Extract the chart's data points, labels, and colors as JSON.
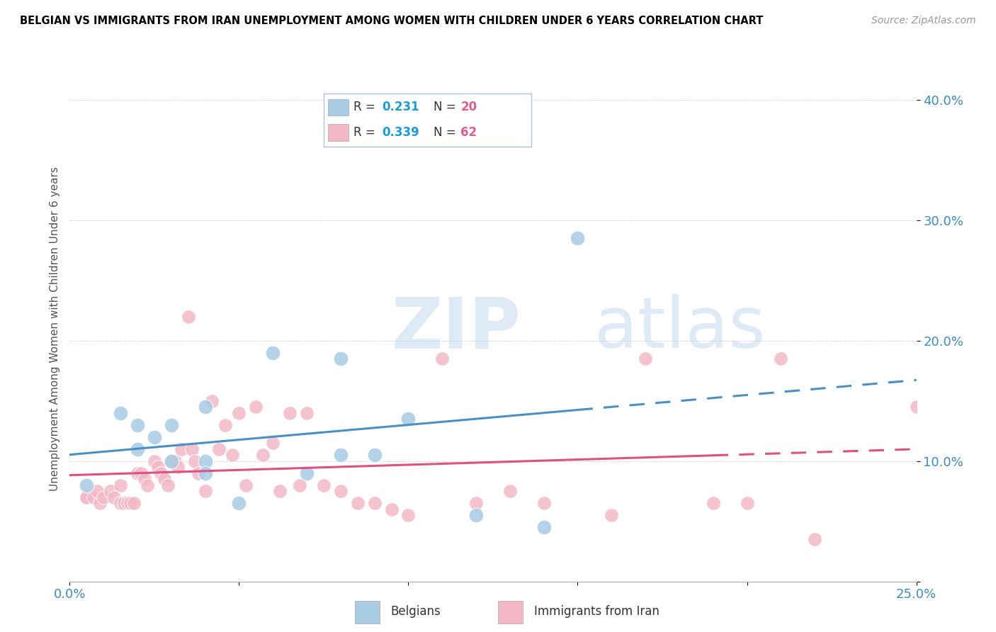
{
  "title": "BELGIAN VS IMMIGRANTS FROM IRAN UNEMPLOYMENT AMONG WOMEN WITH CHILDREN UNDER 6 YEARS CORRELATION CHART",
  "source": "Source: ZipAtlas.com",
  "ylabel": "Unemployment Among Women with Children Under 6 years",
  "xlim": [
    0.0,
    0.25
  ],
  "ylim": [
    0.0,
    0.42
  ],
  "belgians_R": 0.231,
  "belgians_N": 20,
  "iranians_R": 0.339,
  "iranians_N": 62,
  "belgian_color": "#a8cce4",
  "iranian_color": "#f4b8c8",
  "belgian_line_color": "#4a90c4",
  "iranian_line_color": "#e05080",
  "watermark_color": "#d8e8f0",
  "legend_color_R": "#1a9ed4",
  "legend_color_N": "#e05c8a",
  "belgians_x": [
    0.005,
    0.015,
    0.02,
    0.02,
    0.025,
    0.03,
    0.03,
    0.04,
    0.04,
    0.04,
    0.05,
    0.06,
    0.07,
    0.08,
    0.08,
    0.09,
    0.1,
    0.12,
    0.14,
    0.15
  ],
  "belgians_y": [
    0.08,
    0.14,
    0.13,
    0.11,
    0.12,
    0.1,
    0.13,
    0.1,
    0.09,
    0.145,
    0.065,
    0.19,
    0.09,
    0.185,
    0.105,
    0.105,
    0.135,
    0.055,
    0.045,
    0.285
  ],
  "iranians_x": [
    0.005,
    0.005,
    0.007,
    0.008,
    0.009,
    0.01,
    0.012,
    0.013,
    0.015,
    0.015,
    0.016,
    0.017,
    0.018,
    0.019,
    0.02,
    0.021,
    0.022,
    0.023,
    0.025,
    0.026,
    0.027,
    0.028,
    0.029,
    0.03,
    0.031,
    0.032,
    0.033,
    0.035,
    0.036,
    0.037,
    0.038,
    0.04,
    0.042,
    0.044,
    0.046,
    0.048,
    0.05,
    0.052,
    0.055,
    0.057,
    0.06,
    0.062,
    0.065,
    0.068,
    0.07,
    0.075,
    0.08,
    0.085,
    0.09,
    0.095,
    0.1,
    0.11,
    0.12,
    0.13,
    0.14,
    0.16,
    0.17,
    0.19,
    0.2,
    0.21,
    0.22,
    0.25
  ],
  "iranians_y": [
    0.07,
    0.07,
    0.07,
    0.075,
    0.065,
    0.07,
    0.075,
    0.07,
    0.065,
    0.08,
    0.065,
    0.065,
    0.065,
    0.065,
    0.09,
    0.09,
    0.085,
    0.08,
    0.1,
    0.095,
    0.09,
    0.085,
    0.08,
    0.1,
    0.1,
    0.095,
    0.11,
    0.22,
    0.11,
    0.1,
    0.09,
    0.075,
    0.15,
    0.11,
    0.13,
    0.105,
    0.14,
    0.08,
    0.145,
    0.105,
    0.115,
    0.075,
    0.14,
    0.08,
    0.14,
    0.08,
    0.075,
    0.065,
    0.065,
    0.06,
    0.055,
    0.185,
    0.065,
    0.075,
    0.065,
    0.055,
    0.185,
    0.065,
    0.065,
    0.185,
    0.035,
    0.145
  ]
}
